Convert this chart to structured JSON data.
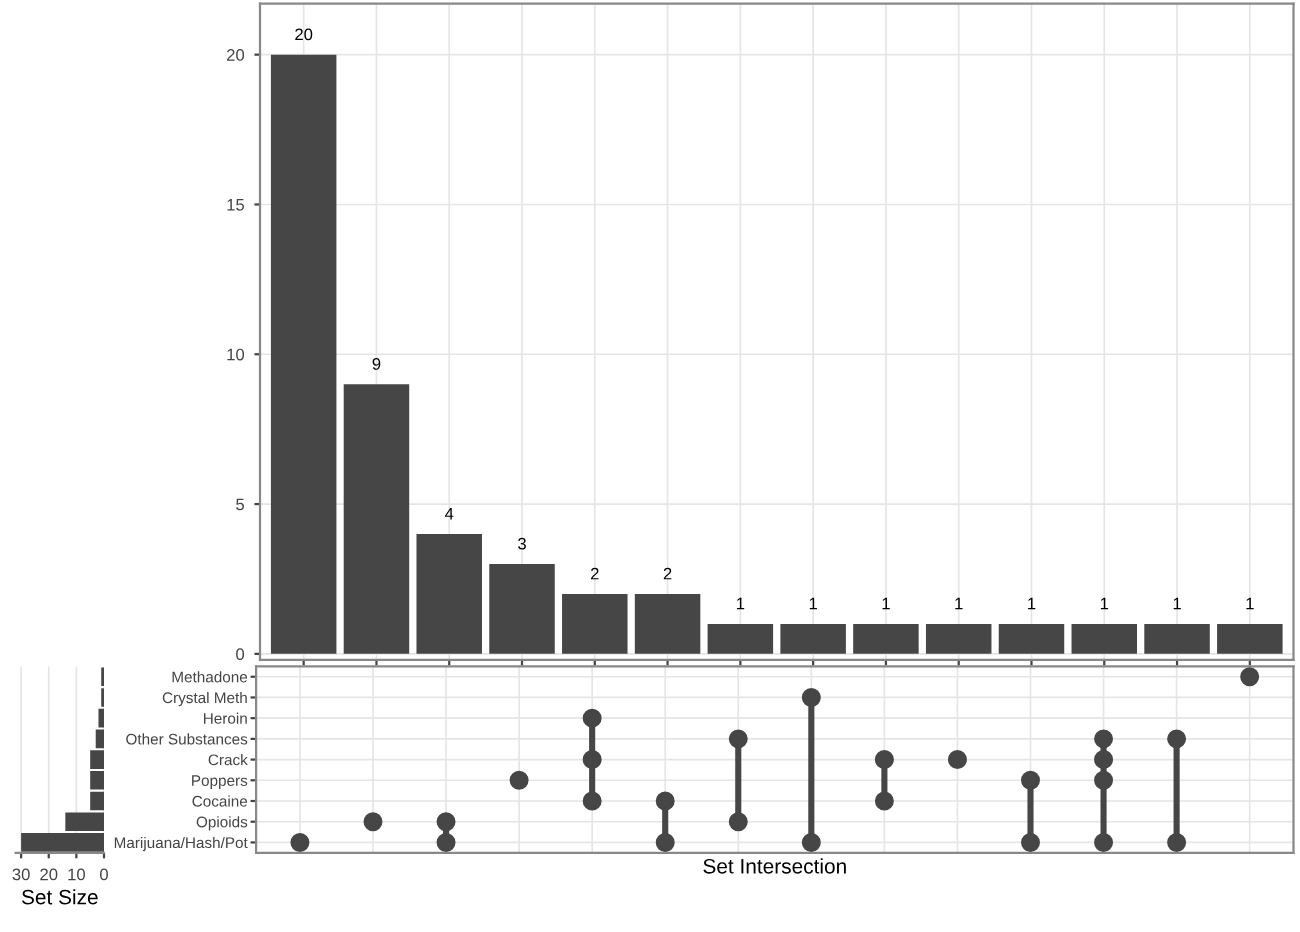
{
  "chart_data": [
    {
      "type": "bar",
      "categories": [
        null,
        null,
        null,
        null,
        null,
        null,
        null,
        null,
        null,
        null,
        null,
        null,
        null,
        null
      ],
      "values": [
        20,
        9,
        4,
        3,
        2,
        2,
        1,
        1,
        1,
        1,
        1,
        1,
        1,
        1
      ],
      "color": "#464646",
      "ylim": [
        -0.2,
        21.7
      ],
      "yticks": [
        0,
        5,
        10,
        15,
        20
      ],
      "data_labels": true,
      "grid": true
    },
    {
      "type": "bar",
      "orientation": "horizontal",
      "xlabel": "Set Size",
      "categories": [
        null,
        null,
        null,
        null,
        null,
        null,
        null,
        null,
        null
      ],
      "values": [
        1,
        1,
        2,
        3,
        5,
        5,
        5,
        14,
        30
      ],
      "color": "#464646",
      "xlim": [
        32,
        0
      ],
      "xticks": [
        30,
        20,
        10,
        0
      ],
      "tick_labels": "x",
      "grid": "x"
    },
    {
      "type": "heatmap",
      "xlabel": "Set Intersection",
      "color": "#464646",
      "grid": true,
      "categories": [
        null,
        null,
        null,
        null,
        null,
        null,
        null,
        null,
        null,
        null,
        null,
        null,
        null,
        null
      ],
      "y_categories": [
        "Methadone",
        "Crystal Meth",
        "Heroin",
        "Other Substances",
        "Crack",
        "Poppers",
        "Cocaine",
        "Opioids",
        "Marijuana/Hash/Pot"
      ],
      "cells": [
        [
          null,
          null,
          null,
          null,
          null,
          null,
          null,
          null,
          null,
          null,
          null,
          null,
          null,
          true
        ],
        [
          null,
          null,
          null,
          null,
          null,
          null,
          null,
          true,
          null,
          null,
          null,
          null,
          null,
          null
        ],
        [
          null,
          null,
          null,
          null,
          true,
          null,
          null,
          null,
          null,
          null,
          null,
          null,
          null,
          null
        ],
        [
          null,
          null,
          null,
          null,
          null,
          null,
          true,
          null,
          null,
          null,
          null,
          true,
          true,
          null
        ],
        [
          null,
          null,
          null,
          null,
          true,
          null,
          null,
          null,
          true,
          true,
          null,
          true,
          null,
          null
        ],
        [
          null,
          null,
          null,
          true,
          null,
          null,
          null,
          null,
          null,
          null,
          true,
          true,
          null,
          null
        ],
        [
          null,
          null,
          null,
          null,
          true,
          true,
          null,
          null,
          true,
          null,
          null,
          null,
          null,
          null
        ],
        [
          null,
          true,
          true,
          null,
          null,
          null,
          true,
          null,
          null,
          null,
          null,
          null,
          null,
          null
        ],
        [
          true,
          null,
          true,
          null,
          null,
          true,
          null,
          true,
          null,
          null,
          true,
          true,
          true,
          null
        ]
      ],
      "tick_labels": "y"
    }
  ]
}
